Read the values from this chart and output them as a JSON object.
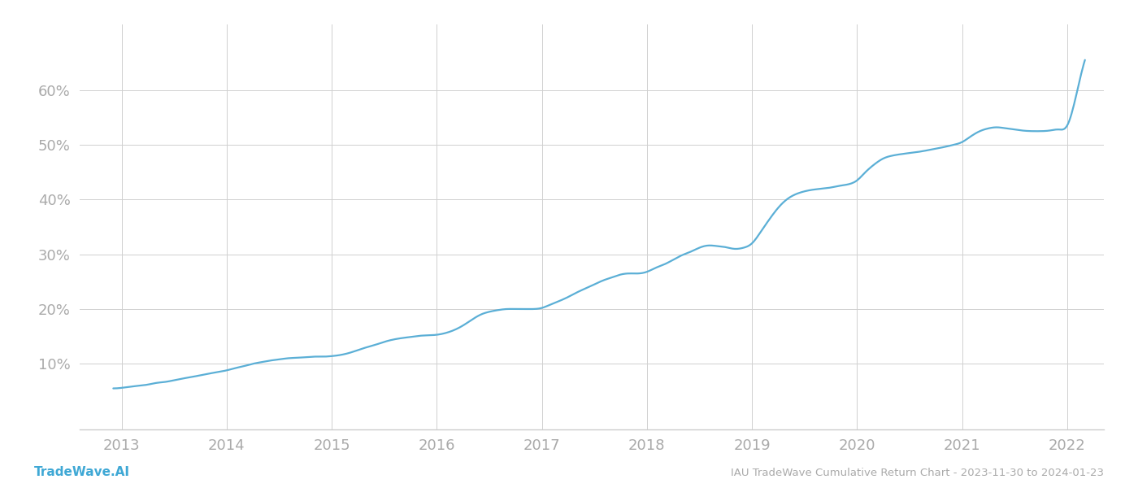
{
  "title": "IAU TradeWave Cumulative Return Chart - 2023-11-30 to 2024-01-23",
  "watermark": "TradeWave.AI",
  "line_color": "#5bafd6",
  "line_width": 1.6,
  "background_color": "#ffffff",
  "grid_color": "#d0d0d0",
  "tick_color": "#aaaaaa",
  "label_color": "#aaaaaa",
  "x_ticks": [
    2013,
    2014,
    2015,
    2016,
    2017,
    2018,
    2019,
    2020,
    2021,
    2022
  ],
  "y_ticks": [
    10,
    20,
    30,
    40,
    50,
    60
  ],
  "xlim": [
    2012.6,
    2022.35
  ],
  "ylim": [
    -2,
    72
  ],
  "data_x": [
    2012.92,
    2013.0,
    2013.08,
    2013.17,
    2013.25,
    2013.33,
    2013.42,
    2013.5,
    2013.58,
    2013.67,
    2013.75,
    2013.83,
    2013.92,
    2014.0,
    2014.08,
    2014.17,
    2014.25,
    2014.33,
    2014.42,
    2014.5,
    2014.58,
    2014.67,
    2014.75,
    2014.83,
    2014.92,
    2015.0,
    2015.08,
    2015.17,
    2015.25,
    2015.33,
    2015.42,
    2015.5,
    2015.58,
    2015.67,
    2015.75,
    2015.83,
    2015.92,
    2016.0,
    2016.08,
    2016.17,
    2016.25,
    2016.33,
    2016.42,
    2016.5,
    2016.58,
    2016.67,
    2016.75,
    2016.83,
    2016.92,
    2017.0,
    2017.08,
    2017.17,
    2017.25,
    2017.33,
    2017.42,
    2017.5,
    2017.58,
    2017.67,
    2017.75,
    2017.83,
    2017.92,
    2018.0,
    2018.08,
    2018.17,
    2018.25,
    2018.33,
    2018.42,
    2018.5,
    2018.58,
    2018.67,
    2018.75,
    2018.83,
    2018.92,
    2019.0,
    2019.08,
    2019.17,
    2019.25,
    2019.33,
    2019.42,
    2019.5,
    2019.58,
    2019.67,
    2019.75,
    2019.83,
    2019.92,
    2020.0,
    2020.08,
    2020.17,
    2020.25,
    2020.33,
    2020.42,
    2020.5,
    2020.58,
    2020.67,
    2020.75,
    2020.83,
    2020.92,
    2021.0,
    2021.08,
    2021.17,
    2021.25,
    2021.33,
    2021.42,
    2021.5,
    2021.58,
    2021.67,
    2021.75,
    2021.83,
    2021.92,
    2022.0,
    2022.08,
    2022.17
  ],
  "data_y": [
    5.5,
    5.6,
    5.8,
    6.0,
    6.2,
    6.5,
    6.7,
    7.0,
    7.3,
    7.6,
    7.9,
    8.2,
    8.5,
    8.8,
    9.2,
    9.6,
    10.0,
    10.3,
    10.6,
    10.8,
    11.0,
    11.1,
    11.2,
    11.3,
    11.3,
    11.4,
    11.6,
    12.0,
    12.5,
    13.0,
    13.5,
    14.0,
    14.4,
    14.7,
    14.9,
    15.1,
    15.2,
    15.3,
    15.6,
    16.2,
    17.0,
    18.0,
    19.0,
    19.5,
    19.8,
    20.0,
    20.0,
    20.0,
    20.0,
    20.2,
    20.8,
    21.5,
    22.2,
    23.0,
    23.8,
    24.5,
    25.2,
    25.8,
    26.3,
    26.5,
    26.5,
    26.8,
    27.5,
    28.2,
    29.0,
    29.8,
    30.5,
    31.2,
    31.6,
    31.5,
    31.3,
    31.0,
    31.2,
    32.0,
    34.0,
    36.5,
    38.5,
    40.0,
    41.0,
    41.5,
    41.8,
    42.0,
    42.2,
    42.5,
    42.8,
    43.5,
    45.0,
    46.5,
    47.5,
    48.0,
    48.3,
    48.5,
    48.7,
    49.0,
    49.3,
    49.6,
    50.0,
    50.5,
    51.5,
    52.5,
    53.0,
    53.2,
    53.0,
    52.8,
    52.6,
    52.5,
    52.5,
    52.6,
    52.8,
    53.5,
    58.5,
    65.5
  ]
}
